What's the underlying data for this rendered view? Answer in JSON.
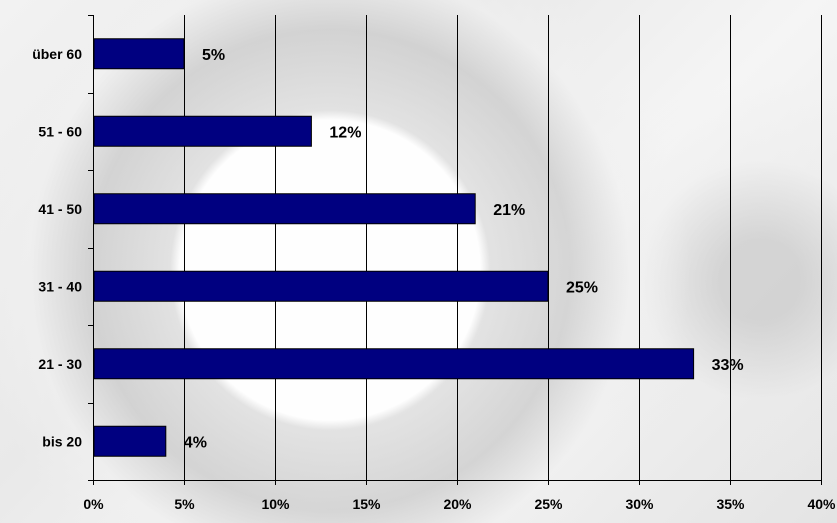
{
  "chart_data": {
    "type": "bar",
    "orientation": "horizontal",
    "categories": [
      "bis 20",
      "21 - 30",
      "31 - 40",
      "41 - 50",
      "51 - 60",
      "über 60"
    ],
    "values": [
      4,
      33,
      25,
      21,
      12,
      5
    ],
    "data_labels": [
      "4%",
      "33%",
      "25%",
      "21%",
      "12%",
      "5%"
    ],
    "xlim": [
      0,
      40
    ],
    "x_ticks": [
      0,
      5,
      10,
      15,
      20,
      25,
      30,
      35,
      40
    ],
    "x_tick_labels": [
      "0%",
      "5%",
      "10%",
      "15%",
      "20%",
      "25%",
      "30%",
      "35%",
      "40%"
    ],
    "title": "",
    "xlabel": "",
    "ylabel": "",
    "grid": "vertical",
    "legend": "none",
    "bar_color": "#000080",
    "background_image": "pocket-watch-photo"
  }
}
